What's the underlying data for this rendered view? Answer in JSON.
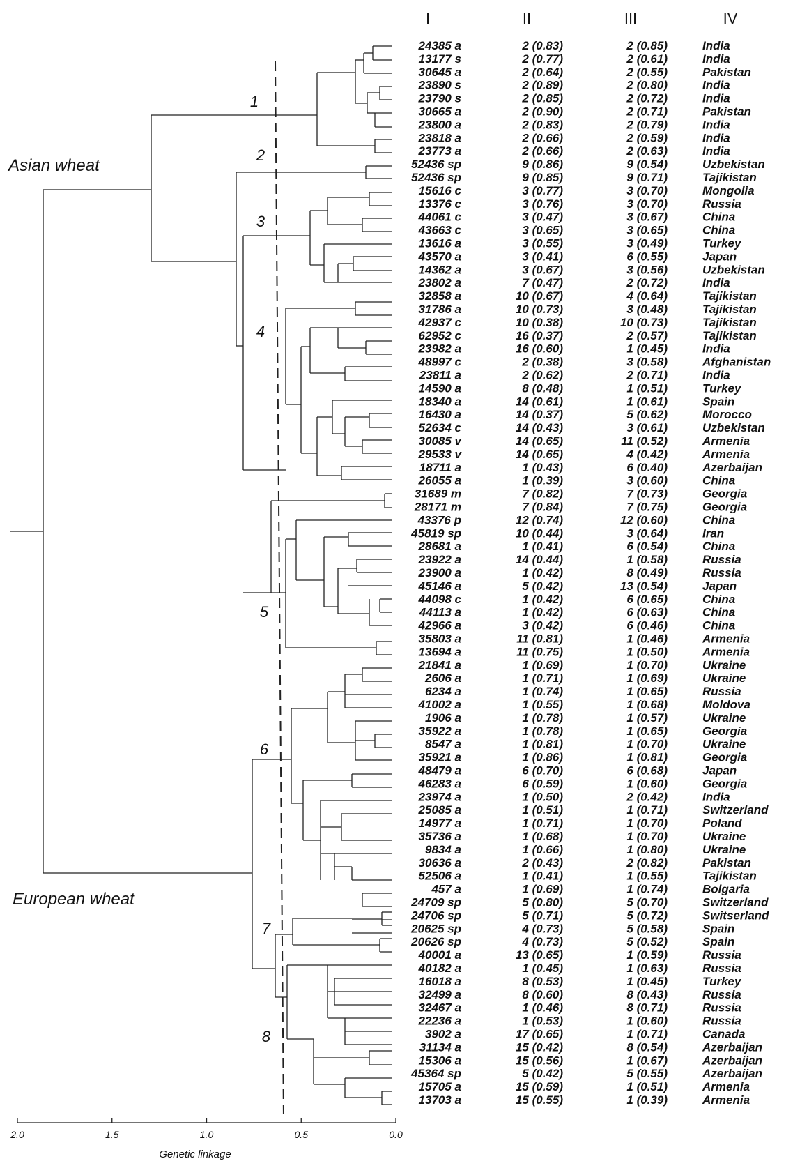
{
  "columns": {
    "c1": "I",
    "c2": "II",
    "c3": "III",
    "c4": "IV"
  },
  "group_labels": {
    "asian": "Asian wheat",
    "european": "European wheat"
  },
  "cluster_numbers": [
    "1",
    "2",
    "3",
    "4",
    "5",
    "6",
    "7",
    "8"
  ],
  "axis": {
    "title": "Genetic linkage",
    "ticks": [
      "2.0",
      "1.5",
      "1.0",
      "0.5",
      "0.0"
    ],
    "range": [
      2.0,
      0.0
    ]
  },
  "accessions": [
    {
      "id": "24385 a",
      "ii": "2 (0.83)",
      "iii": "2 (0.85)",
      "country": "India"
    },
    {
      "id": "13177 s",
      "ii": "2 (0.77)",
      "iii": "2 (0.61)",
      "country": "India"
    },
    {
      "id": "30645 a",
      "ii": "2 (0.64)",
      "iii": "2 (0.55)",
      "country": "Pakistan"
    },
    {
      "id": "23890 s",
      "ii": "2 (0.89)",
      "iii": "2 (0.80)",
      "country": "India"
    },
    {
      "id": "23790 s",
      "ii": "2 (0.85)",
      "iii": "2 (0.72)",
      "country": "India"
    },
    {
      "id": "30665 a",
      "ii": "2 (0.90)",
      "iii": "2 (0.71)",
      "country": "Pakistan"
    },
    {
      "id": "23800 a",
      "ii": "2 (0.83)",
      "iii": "2 (0.79)",
      "country": "India"
    },
    {
      "id": "23818 a",
      "ii": "2 (0.66)",
      "iii": "2 (0.59)",
      "country": "India"
    },
    {
      "id": "23773 a",
      "ii": "2 (0.66)",
      "iii": "2 (0.63)",
      "country": "India"
    },
    {
      "id": "52436 sp",
      "ii": "9 (0.86)",
      "iii": "9 (0.54)",
      "country": "Uzbekistan"
    },
    {
      "id": "52436 sp",
      "ii": "9 (0.85)",
      "iii": "9 (0.71)",
      "country": "Tajikistan"
    },
    {
      "id": "15616 c",
      "ii": "3 (0.77)",
      "iii": "3 (0.70)",
      "country": "Mongolia"
    },
    {
      "id": "13376 c",
      "ii": "3 (0.76)",
      "iii": "3 (0.70)",
      "country": "Russia"
    },
    {
      "id": "44061 c",
      "ii": "3 (0.47)",
      "iii": "3 (0.67)",
      "country": "China"
    },
    {
      "id": "43663 c",
      "ii": "3 (0.65)",
      "iii": "3 (0.65)",
      "country": "China"
    },
    {
      "id": "13616 a",
      "ii": "3 (0.55)",
      "iii": "3 (0.49)",
      "country": "Turkey"
    },
    {
      "id": "43570 a",
      "ii": "3 (0.41)",
      "iii": "6 (0.55)",
      "country": "Japan"
    },
    {
      "id": "14362 a",
      "ii": "3 (0.67)",
      "iii": "3 (0.56)",
      "country": "Uzbekistan"
    },
    {
      "id": "23802 a",
      "ii": "7 (0.47)",
      "iii": "2 (0.72)",
      "country": "India"
    },
    {
      "id": "32858 a",
      "ii": "10 (0.67)",
      "iii": "4 (0.64)",
      "country": "Tajikistan"
    },
    {
      "id": "31786 a",
      "ii": "10 (0.73)",
      "iii": "3 (0.48)",
      "country": "Tajikistan"
    },
    {
      "id": "42937 c",
      "ii": "10 (0.38)",
      "iii": "10 (0.73)",
      "country": "Tajikistan"
    },
    {
      "id": "62952 c",
      "ii": "16 (0.37)",
      "iii": "2 (0.57)",
      "country": "Tajikistan"
    },
    {
      "id": "23982 a",
      "ii": "16 (0.60)",
      "iii": "1 (0.45)",
      "country": "India"
    },
    {
      "id": "48997 c",
      "ii": "2 (0.38)",
      "iii": "3 (0.58)",
      "country": "Afghanistan"
    },
    {
      "id": "23811 a",
      "ii": "2 (0.62)",
      "iii": "2 (0.71)",
      "country": "India"
    },
    {
      "id": "14590 a",
      "ii": "8 (0.48)",
      "iii": "1 (0.51)",
      "country": "Turkey"
    },
    {
      "id": "18340 a",
      "ii": "14 (0.61)",
      "iii": "1 (0.61)",
      "country": "Spain"
    },
    {
      "id": "16430 a",
      "ii": "14 (0.37)",
      "iii": "5 (0.62)",
      "country": "Morocco"
    },
    {
      "id": "52634 c",
      "ii": "14 (0.43)",
      "iii": "3 (0.61)",
      "country": "Uzbekistan"
    },
    {
      "id": "30085 v",
      "ii": "14 (0.65)",
      "iii": "11 (0.52)",
      "country": "Armenia"
    },
    {
      "id": "29533 v",
      "ii": "14 (0.65)",
      "iii": "4 (0.42)",
      "country": "Armenia"
    },
    {
      "id": "18711 a",
      "ii": "1 (0.43)",
      "iii": "6 (0.40)",
      "country": "Azerbaijan"
    },
    {
      "id": "26055 a",
      "ii": "1 (0.39)",
      "iii": "3 (0.60)",
      "country": "China"
    },
    {
      "id": "31689 m",
      "ii": "7 (0.82)",
      "iii": "7 (0.73)",
      "country": "Georgia"
    },
    {
      "id": "28171 m",
      "ii": "7 (0.84)",
      "iii": "7 (0.75)",
      "country": "Georgia"
    },
    {
      "id": "43376 p",
      "ii": "12 (0.74)",
      "iii": "12 (0.60)",
      "country": "China"
    },
    {
      "id": "45819 sp",
      "ii": "10 (0.44)",
      "iii": "3 (0.64)",
      "country": "Iran"
    },
    {
      "id": "28681 a",
      "ii": "1 (0.41)",
      "iii": "6 (0.54)",
      "country": "China"
    },
    {
      "id": "23922 a",
      "ii": "14 (0.44)",
      "iii": "1 (0.58)",
      "country": "Russia"
    },
    {
      "id": "23900 a",
      "ii": "1 (0.42)",
      "iii": "8 (0.49)",
      "country": "Russia"
    },
    {
      "id": "45146 a",
      "ii": "5 (0.42)",
      "iii": "13 (0.54)",
      "country": "Japan"
    },
    {
      "id": "44098 c",
      "ii": "1 (0.42)",
      "iii": "6 (0.65)",
      "country": "China"
    },
    {
      "id": "44113 a",
      "ii": "1 (0.42)",
      "iii": "6 (0.63)",
      "country": "China"
    },
    {
      "id": "42966 a",
      "ii": "3 (0.42)",
      "iii": "6 (0.46)",
      "country": "China"
    },
    {
      "id": "35803 a",
      "ii": "11 (0.81)",
      "iii": "1 (0.46)",
      "country": "Armenia"
    },
    {
      "id": "13694 a",
      "ii": "11 (0.75)",
      "iii": "1 (0.50)",
      "country": "Armenia"
    },
    {
      "id": "21841 a",
      "ii": "1 (0.69)",
      "iii": "1 (0.70)",
      "country": "Ukraine"
    },
    {
      "id": "2606 a",
      "ii": "1 (0.71)",
      "iii": "1 (0.69)",
      "country": "Ukraine"
    },
    {
      "id": "6234 a",
      "ii": "1 (0.74)",
      "iii": "1 (0.65)",
      "country": "Russia"
    },
    {
      "id": "41002 a",
      "ii": "1 (0.55)",
      "iii": "1 (0.68)",
      "country": "Moldova"
    },
    {
      "id": "1906 a",
      "ii": "1 (0.78)",
      "iii": "1 (0.57)",
      "country": "Ukraine"
    },
    {
      "id": "35922 a",
      "ii": "1 (0.78)",
      "iii": "1 (0.65)",
      "country": "Georgia"
    },
    {
      "id": "8547 a",
      "ii": "1 (0.81)",
      "iii": "1 (0.70)",
      "country": "Ukraine"
    },
    {
      "id": "35921 a",
      "ii": "1 (0.86)",
      "iii": "1 (0.81)",
      "country": "Georgia"
    },
    {
      "id": "48479 a",
      "ii": "6 (0.70)",
      "iii": "6 (0.68)",
      "country": "Japan"
    },
    {
      "id": "46283 a",
      "ii": "6 (0.59)",
      "iii": "1 (0.60)",
      "country": "Georgia"
    },
    {
      "id": "23974 a",
      "ii": "1 (0.50)",
      "iii": "2 (0.42)",
      "country": "India"
    },
    {
      "id": "25085 a",
      "ii": "1 (0.51)",
      "iii": "1 (0.71)",
      "country": "Switzerland"
    },
    {
      "id": "14977 a",
      "ii": "1 (0.71)",
      "iii": "1 (0.70)",
      "country": "Poland"
    },
    {
      "id": "35736 a",
      "ii": "1 (0.68)",
      "iii": "1 (0.70)",
      "country": "Ukraine"
    },
    {
      "id": "9834 a",
      "ii": "1 (0.66)",
      "iii": "1 (0.80)",
      "country": "Ukraine"
    },
    {
      "id": "30636 a",
      "ii": "2 (0.43)",
      "iii": "2 (0.82)",
      "country": "Pakistan"
    },
    {
      "id": "52506 a",
      "ii": "1 (0.41)",
      "iii": "1 (0.55)",
      "country": "Tajikistan"
    },
    {
      "id": "457 a",
      "ii": "1 (0.69)",
      "iii": "1 (0.74)",
      "country": "Bolgaria"
    },
    {
      "id": "24709 sp",
      "ii": "5 (0.80)",
      "iii": "5 (0.70)",
      "country": "Switzerland"
    },
    {
      "id": "24706 sp",
      "ii": "5 (0.71)",
      "iii": "5 (0.72)",
      "country": "Switserland"
    },
    {
      "id": "20625 sp",
      "ii": "4 (0.73)",
      "iii": "5 (0.58)",
      "country": "Spain"
    },
    {
      "id": "20626 sp",
      "ii": "4 (0.73)",
      "iii": "5 (0.52)",
      "country": "Spain"
    },
    {
      "id": "40001 a",
      "ii": "13 (0.65)",
      "iii": "1 (0.59)",
      "country": "Russia"
    },
    {
      "id": "40182 a",
      "ii": "1 (0.45)",
      "iii": "1 (0.63)",
      "country": "Russia"
    },
    {
      "id": "16018 a",
      "ii": "8 (0.53)",
      "iii": "1 (0.45)",
      "country": "Turkey"
    },
    {
      "id": "32499 a",
      "ii": "8 (0.60)",
      "iii": "8 (0.43)",
      "country": "Russia"
    },
    {
      "id": "32467 a",
      "ii": "1 (0.46)",
      "iii": "8 (0.71)",
      "country": "Russia"
    },
    {
      "id": "22236 a",
      "ii": "1 (0.53)",
      "iii": "1 (0.60)",
      "country": "Russia"
    },
    {
      "id": "3902 a",
      "ii": "17 (0.65)",
      "iii": "1 (0.71)",
      "country": "Canada"
    },
    {
      "id": "31134 a",
      "ii": "15 (0.42)",
      "iii": "8 (0.54)",
      "country": "Azerbaijan"
    },
    {
      "id": "15306 a",
      "ii": "15 (0.56)",
      "iii": "1 (0.67)",
      "country": "Azerbaijan"
    },
    {
      "id": "45364 sp",
      "ii": "5 (0.42)",
      "iii": "5 (0.55)",
      "country": "Azerbaijan"
    },
    {
      "id": "15705 a",
      "ii": "15 (0.59)",
      "iii": "1 (0.51)",
      "country": "Armenia"
    },
    {
      "id": "13703 a",
      "ii": "15 (0.55)",
      "iii": "1 (0.39)",
      "country": "Armenia"
    }
  ]
}
